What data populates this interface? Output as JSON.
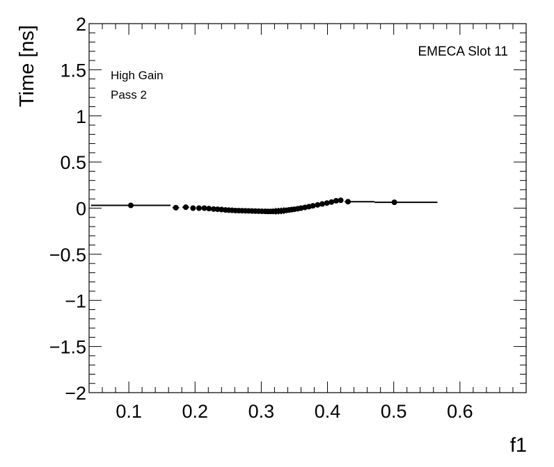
{
  "chart_data": {
    "type": "scatter",
    "xlabel": "f1",
    "ylabel": "Time [ns]",
    "xlim": [
      0.04,
      0.7
    ],
    "ylim": [
      -2,
      2
    ],
    "xticks": [
      0.1,
      0.2,
      0.3,
      0.4,
      0.5,
      0.6
    ],
    "xtick_labels": [
      "0.1",
      "0.2",
      "0.3",
      "0.4",
      "0.5",
      "0.6"
    ],
    "yticks": [
      -2,
      -1.5,
      -1,
      -0.5,
      0,
      0.5,
      1,
      1.5,
      2
    ],
    "ytick_labels": [
      "−2",
      "−1.5",
      "−1",
      "−0.5",
      "0",
      "0.5",
      "1",
      "1.5",
      "2"
    ],
    "grid": false,
    "annotations": {
      "gain": "High Gain",
      "pass": "Pass 2",
      "slot": "EMECA Slot 11"
    },
    "series": [
      {
        "points": [
          {
            "x": 0.103,
            "y": 0.03,
            "xerr": [
              0.06,
              0.06
            ],
            "yerr": 0.005
          },
          {
            "x": 0.171,
            "y": 0.005,
            "xerr": [
              0.005,
              0.005
            ],
            "yerr": 0.005
          },
          {
            "x": 0.186,
            "y": 0.01,
            "xerr": [
              0.005,
              0.005
            ],
            "yerr": 0.005
          },
          {
            "x": 0.197,
            "y": 0.0,
            "xerr": [
              0.004,
              0.004
            ],
            "yerr": 0.005
          },
          {
            "x": 0.206,
            "y": 0.0,
            "xerr": [
              0.004,
              0.004
            ],
            "yerr": 0.005
          },
          {
            "x": 0.214,
            "y": 0.0,
            "xerr": [
              0.004,
              0.004
            ],
            "yerr": 0.005
          },
          {
            "x": 0.221,
            "y": -0.005,
            "xerr": [
              0.003,
              0.003
            ],
            "yerr": 0.006
          },
          {
            "x": 0.228,
            "y": -0.01,
            "xerr": [
              0.003,
              0.003
            ],
            "yerr": 0.006
          },
          {
            "x": 0.234,
            "y": -0.012,
            "xerr": [
              0.003,
              0.003
            ],
            "yerr": 0.006
          },
          {
            "x": 0.24,
            "y": -0.015,
            "xerr": [
              0.003,
              0.003
            ],
            "yerr": 0.008
          },
          {
            "x": 0.246,
            "y": -0.02,
            "xerr": [
              0.003,
              0.003
            ],
            "yerr": 0.008
          },
          {
            "x": 0.251,
            "y": -0.022,
            "xerr": [
              0.003,
              0.003
            ],
            "yerr": 0.008
          },
          {
            "x": 0.256,
            "y": -0.024,
            "xerr": [
              0.002,
              0.002
            ],
            "yerr": 0.008
          },
          {
            "x": 0.261,
            "y": -0.026,
            "xerr": [
              0.002,
              0.002
            ],
            "yerr": 0.01
          },
          {
            "x": 0.266,
            "y": -0.027,
            "xerr": [
              0.002,
              0.002
            ],
            "yerr": 0.01
          },
          {
            "x": 0.271,
            "y": -0.028,
            "xerr": [
              0.002,
              0.002
            ],
            "yerr": 0.01
          },
          {
            "x": 0.276,
            "y": -0.029,
            "xerr": [
              0.002,
              0.002
            ],
            "yerr": 0.01
          },
          {
            "x": 0.281,
            "y": -0.03,
            "xerr": [
              0.002,
              0.002
            ],
            "yerr": 0.01
          },
          {
            "x": 0.286,
            "y": -0.031,
            "xerr": [
              0.002,
              0.002
            ],
            "yerr": 0.01
          },
          {
            "x": 0.291,
            "y": -0.032,
            "xerr": [
              0.002,
              0.002
            ],
            "yerr": 0.01
          },
          {
            "x": 0.296,
            "y": -0.033,
            "xerr": [
              0.002,
              0.002
            ],
            "yerr": 0.012
          },
          {
            "x": 0.301,
            "y": -0.034,
            "xerr": [
              0.002,
              0.002
            ],
            "yerr": 0.012
          },
          {
            "x": 0.306,
            "y": -0.035,
            "xerr": [
              0.002,
              0.002
            ],
            "yerr": 0.012
          },
          {
            "x": 0.31,
            "y": -0.036,
            "xerr": [
              0.002,
              0.002
            ],
            "yerr": 0.014
          },
          {
            "x": 0.314,
            "y": -0.036,
            "xerr": [
              0.002,
              0.002
            ],
            "yerr": 0.02
          },
          {
            "x": 0.318,
            "y": -0.035,
            "xerr": [
              0.002,
              0.002
            ],
            "yerr": 0.03
          },
          {
            "x": 0.322,
            "y": -0.034,
            "xerr": [
              0.002,
              0.002
            ],
            "yerr": 0.035
          },
          {
            "x": 0.326,
            "y": -0.032,
            "xerr": [
              0.002,
              0.002
            ],
            "yerr": 0.035
          },
          {
            "x": 0.33,
            "y": -0.03,
            "xerr": [
              0.002,
              0.002
            ],
            "yerr": 0.035
          },
          {
            "x": 0.334,
            "y": -0.027,
            "xerr": [
              0.002,
              0.002
            ],
            "yerr": 0.035
          },
          {
            "x": 0.338,
            "y": -0.024,
            "xerr": [
              0.002,
              0.002
            ],
            "yerr": 0.03
          },
          {
            "x": 0.342,
            "y": -0.02,
            "xerr": [
              0.002,
              0.002
            ],
            "yerr": 0.03
          },
          {
            "x": 0.346,
            "y": -0.016,
            "xerr": [
              0.002,
              0.002
            ],
            "yerr": 0.03
          },
          {
            "x": 0.35,
            "y": -0.012,
            "xerr": [
              0.002,
              0.002
            ],
            "yerr": 0.025
          },
          {
            "x": 0.355,
            "y": -0.007,
            "xerr": [
              0.002,
              0.002
            ],
            "yerr": 0.02
          },
          {
            "x": 0.36,
            "y": 0.0,
            "xerr": [
              0.002,
              0.002
            ],
            "yerr": 0.018
          },
          {
            "x": 0.366,
            "y": 0.008,
            "xerr": [
              0.003,
              0.003
            ],
            "yerr": 0.015
          },
          {
            "x": 0.372,
            "y": 0.016,
            "xerr": [
              0.003,
              0.003
            ],
            "yerr": 0.015
          },
          {
            "x": 0.378,
            "y": 0.025,
            "xerr": [
              0.003,
              0.003
            ],
            "yerr": 0.012
          },
          {
            "x": 0.385,
            "y": 0.035,
            "xerr": [
              0.003,
              0.003
            ],
            "yerr": 0.012
          },
          {
            "x": 0.392,
            "y": 0.045,
            "xerr": [
              0.003,
              0.003
            ],
            "yerr": 0.01
          },
          {
            "x": 0.399,
            "y": 0.055,
            "xerr": [
              0.003,
              0.003
            ],
            "yerr": 0.01
          },
          {
            "x": 0.406,
            "y": 0.066,
            "xerr": [
              0.003,
              0.003
            ],
            "yerr": 0.008
          },
          {
            "x": 0.413,
            "y": 0.08,
            "xerr": [
              0.003,
              0.003
            ],
            "yerr": 0.008
          },
          {
            "x": 0.42,
            "y": 0.085,
            "xerr": [
              0.004,
              0.004
            ],
            "yerr": 0.008
          },
          {
            "x": 0.431,
            "y": 0.07,
            "xerr": [
              0.005,
              0.04
            ],
            "yerr": 0.006
          },
          {
            "x": 0.501,
            "y": 0.063,
            "xerr": [
              0.03,
              0.065
            ],
            "yerr": 0.005
          }
        ]
      }
    ]
  }
}
